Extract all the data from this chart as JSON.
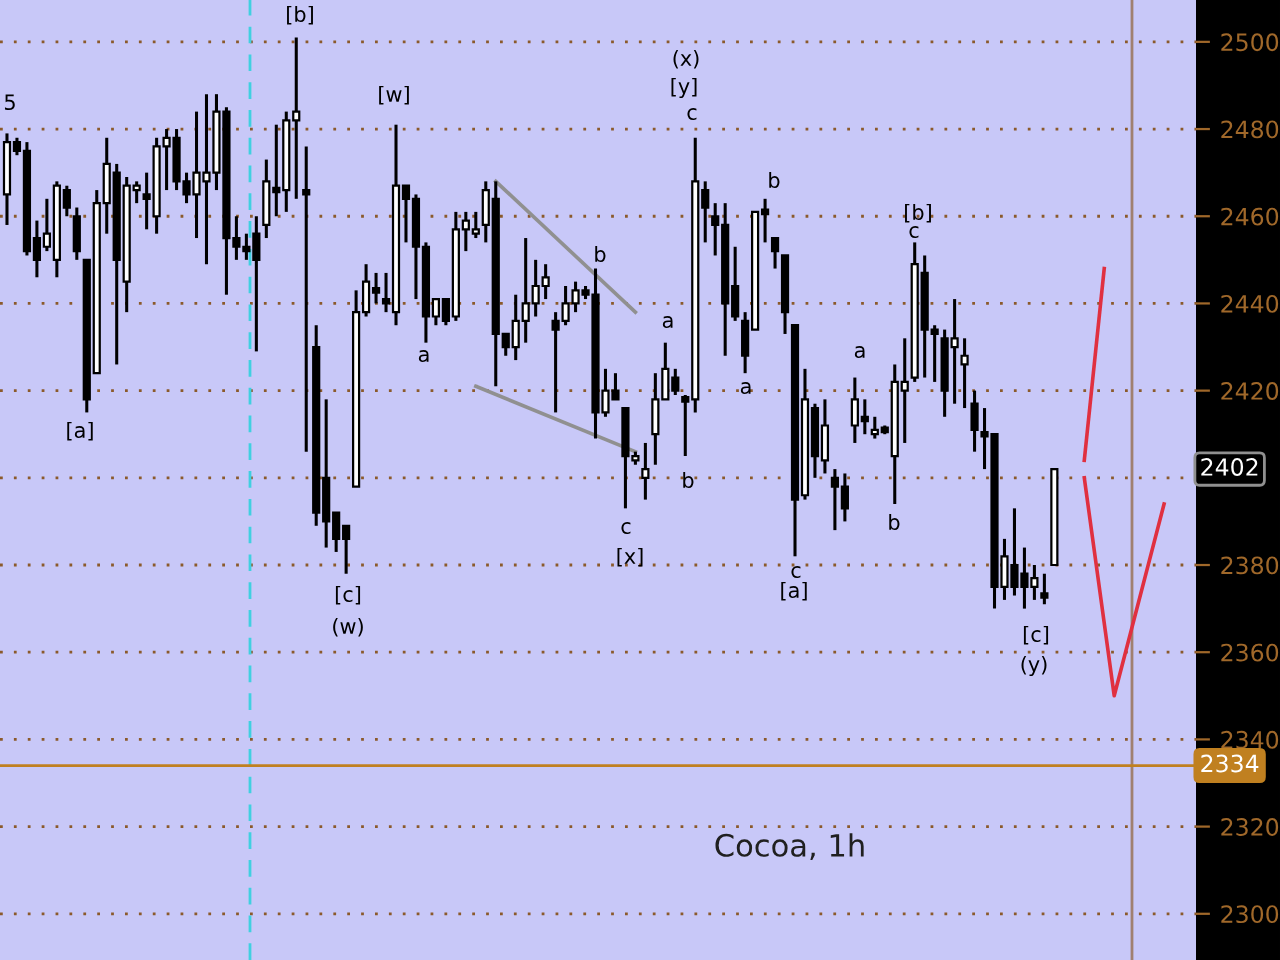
{
  "chart_data": {
    "type": "candlestick",
    "title": "Cocoa, 1h",
    "categories": [
      null,
      null,
      null,
      null,
      null,
      null,
      null,
      null,
      null,
      null,
      null,
      null,
      null,
      null,
      null,
      null,
      null,
      null,
      null,
      null,
      null,
      null,
      null,
      null,
      null,
      null,
      null,
      null,
      null,
      null,
      null,
      null,
      null,
      null,
      null,
      null,
      null,
      null,
      null,
      null,
      null,
      null,
      null,
      null,
      null,
      null,
      null,
      null,
      null,
      null,
      null,
      null,
      null,
      null,
      null,
      null,
      null,
      null,
      null,
      null,
      null,
      null,
      null,
      null,
      null,
      null,
      null,
      null,
      null,
      null,
      null,
      null,
      null,
      null,
      null,
      null,
      null,
      null,
      null,
      null,
      null,
      null,
      null,
      null,
      null,
      null,
      null,
      null,
      null,
      null,
      null,
      null,
      null,
      null,
      null,
      null,
      null,
      null,
      null,
      null,
      null,
      null,
      null,
      null,
      null,
      null,
      null,
      null,
      null,
      null,
      null,
      null,
      null,
      null,
      null,
      null,
      null,
      null,
      null
    ],
    "ohlc": [
      [
        2465,
        2479,
        2458,
        2477
      ],
      [
        2477,
        2478,
        2474,
        2475
      ],
      [
        2475,
        2477,
        2451,
        2452
      ],
      [
        2455,
        2459,
        2446,
        2450
      ],
      [
        2453,
        2464,
        2452,
        2456
      ],
      [
        2450,
        2468,
        2446,
        2467
      ],
      [
        2466,
        2467,
        2460,
        2462
      ],
      [
        2460,
        2462,
        2450,
        2452
      ],
      [
        2450,
        2450,
        2415,
        2418
      ],
      [
        2424,
        2466,
        2424,
        2463
      ],
      [
        2463,
        2478,
        2456,
        2472
      ],
      [
        2470,
        2472,
        2426,
        2450
      ],
      [
        2445,
        2469,
        2438,
        2467
      ],
      [
        2466,
        2468,
        2463,
        2467
      ],
      [
        2465,
        2470,
        2457,
        2464
      ],
      [
        2460,
        2478,
        2456,
        2476
      ],
      [
        2476,
        2480,
        2466,
        2478
      ],
      [
        2478,
        2480,
        2466,
        2468
      ],
      [
        2468,
        2470,
        2463,
        2465
      ],
      [
        2465,
        2484,
        2455,
        2470
      ],
      [
        2468,
        2488,
        2449,
        2470
      ],
      [
        2470,
        2488,
        2466,
        2484
      ],
      [
        2484,
        2485,
        2442,
        2455
      ],
      [
        2455,
        2460,
        2450,
        2453
      ],
      [
        2453,
        2456,
        2450,
        2452
      ],
      [
        2456,
        2460,
        2429,
        2450
      ],
      [
        2458,
        2473,
        2455,
        2468
      ],
      [
        2466,
        2481,
        2460,
        2466
      ],
      [
        2466,
        2484,
        2461,
        2482
      ],
      [
        2482,
        2501,
        2464,
        2484
      ],
      [
        2466,
        2476,
        2406,
        2465
      ],
      [
        2430,
        2435,
        2389,
        2392
      ],
      [
        2400,
        2418,
        2384,
        2390
      ],
      [
        2392,
        2392,
        2383,
        2386
      ],
      [
        2389,
        2389,
        2378,
        2386
      ],
      [
        2398,
        2443,
        2398,
        2438
      ],
      [
        2438,
        2449,
        2437,
        2445
      ],
      [
        2443,
        2447,
        2440,
        2443
      ],
      [
        2441,
        2447,
        2438,
        2440
      ],
      [
        2438,
        2481,
        2435,
        2467
      ],
      [
        2467,
        2467,
        2454,
        2464
      ],
      [
        2464,
        2465,
        2441,
        2453
      ],
      [
        2453,
        2454,
        2431,
        2437
      ],
      [
        2437,
        2441,
        2435,
        2441
      ],
      [
        2441,
        2441,
        2435,
        2436
      ],
      [
        2437,
        2461,
        2436,
        2457
      ],
      [
        2457,
        2461,
        2452,
        2459
      ],
      [
        2456,
        2461,
        2455,
        2457
      ],
      [
        2458,
        2468,
        2454,
        2466
      ],
      [
        2464,
        2468,
        2421,
        2433
      ],
      [
        2433,
        2433,
        2428,
        2430
      ],
      [
        2430,
        2442,
        2427,
        2436
      ],
      [
        2436,
        2455,
        2431,
        2440
      ],
      [
        2440,
        2450,
        2437,
        2444
      ],
      [
        2444,
        2449,
        2441,
        2446
      ],
      [
        2436,
        2438,
        2415,
        2434
      ],
      [
        2436,
        2444,
        2435,
        2440
      ],
      [
        2440,
        2445,
        2438,
        2443
      ],
      [
        2443,
        2444,
        2441,
        2442
      ],
      [
        2442,
        2448,
        2409,
        2415
      ],
      [
        2415,
        2425,
        2414,
        2420
      ],
      [
        2420,
        2424,
        2418,
        2418
      ],
      [
        2416,
        2416,
        2393,
        2405
      ],
      [
        2404,
        2406,
        2403,
        2405
      ],
      [
        2400,
        2408,
        2395,
        2402
      ],
      [
        2410,
        2424,
        2403,
        2418
      ],
      [
        2418,
        2431,
        2418,
        2425
      ],
      [
        2423,
        2425,
        2419,
        2420
      ],
      [
        2418,
        2419,
        2405,
        2418
      ],
      [
        2418,
        2478,
        2415,
        2468
      ],
      [
        2466,
        2468,
        2454,
        2462
      ],
      [
        2460,
        2463,
        2451,
        2458
      ],
      [
        2458,
        2463,
        2428,
        2440
      ],
      [
        2444,
        2453,
        2436,
        2437
      ],
      [
        2436,
        2438,
        2424,
        2428
      ],
      [
        2434,
        2461,
        2434,
        2461
      ],
      [
        2461,
        2464,
        2454,
        2461
      ],
      [
        2455,
        2455,
        2448,
        2452
      ],
      [
        2451,
        2451,
        2433,
        2438
      ],
      [
        2435,
        2435,
        2382,
        2395
      ],
      [
        2396,
        2425,
        2395,
        2418
      ],
      [
        2416,
        2417,
        2400,
        2405
      ],
      [
        2404,
        2418,
        2401,
        2412
      ],
      [
        2400,
        2402,
        2388,
        2398
      ],
      [
        2398,
        2401,
        2390,
        2393
      ],
      [
        2412,
        2423,
        2408,
        2418
      ],
      [
        2414,
        2418,
        2410,
        2413
      ],
      [
        2410,
        2414,
        2409,
        2411
      ],
      [
        2411,
        2412,
        2410,
        2411
      ],
      [
        2405,
        2426,
        2394,
        2422
      ],
      [
        2420,
        2432,
        2408,
        2422
      ],
      [
        2423,
        2454,
        2422,
        2449
      ],
      [
        2447,
        2451,
        2423,
        2434
      ],
      [
        2434,
        2435,
        2422,
        2433
      ],
      [
        2432,
        2434,
        2414,
        2420
      ],
      [
        2430,
        2441,
        2417,
        2432
      ],
      [
        2426,
        2432,
        2416,
        2428
      ],
      [
        2417,
        2420,
        2406,
        2411
      ],
      [
        2410,
        2416,
        2402,
        2410
      ],
      [
        2410,
        2410,
        2370,
        2375
      ],
      [
        2375,
        2386,
        2372,
        2382
      ],
      [
        2380,
        2393,
        2373,
        2375
      ],
      [
        2378,
        2384,
        2370,
        2375
      ],
      [
        2375,
        2380,
        2372,
        2377
      ],
      [
        2373,
        2378,
        2371,
        2373
      ],
      [
        2380,
        2402,
        2380,
        2402
      ],
      null,
      null,
      null,
      null,
      null,
      null,
      null,
      null,
      null,
      null,
      null,
      null,
      null
    ],
    "color": "#000000",
    "series": [
      {
        "type": "line",
        "color": "#909090",
        "values": [
          null,
          null,
          null,
          null,
          null,
          null,
          null,
          null,
          null,
          null,
          null,
          null,
          null,
          null,
          null,
          null,
          null,
          null,
          null,
          null,
          null,
          null,
          null,
          null,
          null,
          null,
          null,
          null,
          null,
          null,
          null,
          null,
          null,
          null,
          null,
          null,
          null,
          null,
          null,
          null,
          null,
          null,
          null,
          null,
          null,
          null,
          null,
          null,
          null,
          2468,
          null,
          null,
          null,
          null,
          null,
          null,
          null,
          null,
          null,
          null,
          null,
          null,
          null,
          2438,
          null,
          null,
          null,
          null,
          null,
          null,
          null,
          null,
          null,
          null,
          null,
          null,
          null,
          null,
          null,
          null,
          null,
          null,
          null,
          null,
          null,
          null,
          null,
          null,
          null,
          null,
          null,
          null,
          null,
          null,
          null,
          null,
          null,
          null,
          null,
          null,
          null,
          null,
          null,
          null,
          null,
          null,
          null,
          null,
          null,
          null,
          null,
          null,
          null,
          null,
          null,
          null,
          null,
          null,
          null
        ]
      },
      {
        "type": "line",
        "color": "#909090",
        "values": [
          null,
          null,
          null,
          null,
          null,
          null,
          null,
          null,
          null,
          null,
          null,
          null,
          null,
          null,
          null,
          null,
          null,
          null,
          null,
          null,
          null,
          null,
          null,
          null,
          null,
          null,
          null,
          null,
          null,
          null,
          null,
          null,
          null,
          null,
          null,
          null,
          null,
          null,
          null,
          null,
          null,
          null,
          null,
          null,
          null,
          null,
          null,
          2421,
          null,
          null,
          null,
          null,
          null,
          null,
          null,
          null,
          null,
          null,
          null,
          null,
          null,
          null,
          null,
          2406,
          null,
          null,
          null,
          null,
          null,
          null,
          null,
          null,
          null,
          null,
          null,
          null,
          null,
          null,
          null,
          null,
          null,
          null,
          null,
          null,
          null,
          null,
          null,
          null,
          null,
          null,
          null,
          null,
          null,
          null,
          null,
          null,
          null,
          null,
          null,
          null,
          null,
          null,
          null,
          null,
          null,
          null,
          null,
          null,
          null,
          null,
          null,
          null,
          null,
          null,
          null,
          null,
          null,
          null,
          null
        ]
      },
      {
        "type": "line",
        "color": "#e03040",
        "values": [
          null,
          null,
          null,
          null,
          null,
          null,
          null,
          null,
          null,
          null,
          null,
          null,
          null,
          null,
          null,
          null,
          null,
          null,
          null,
          null,
          null,
          null,
          null,
          null,
          null,
          null,
          null,
          null,
          null,
          null,
          null,
          null,
          null,
          null,
          null,
          null,
          null,
          null,
          null,
          null,
          null,
          null,
          null,
          null,
          null,
          null,
          null,
          null,
          null,
          null,
          null,
          null,
          null,
          null,
          null,
          null,
          null,
          null,
          null,
          null,
          null,
          null,
          null,
          null,
          null,
          null,
          null,
          null,
          null,
          null,
          null,
          null,
          null,
          null,
          null,
          null,
          null,
          null,
          null,
          null,
          null,
          null,
          null,
          null,
          null,
          null,
          null,
          null,
          null,
          null,
          null,
          null,
          null,
          null,
          null,
          null,
          null,
          null,
          null,
          null,
          null,
          null,
          null,
          null,
          null,
          null,
          null,
          null,
          2404,
          null,
          2448,
          null,
          null,
          null,
          null,
          null,
          null,
          null,
          null
        ]
      },
      {
        "type": "line",
        "color": "#e03040",
        "values": [
          null,
          null,
          null,
          null,
          null,
          null,
          null,
          null,
          null,
          null,
          null,
          null,
          null,
          null,
          null,
          null,
          null,
          null,
          null,
          null,
          null,
          null,
          null,
          null,
          null,
          null,
          null,
          null,
          null,
          null,
          null,
          null,
          null,
          null,
          null,
          null,
          null,
          null,
          null,
          null,
          null,
          null,
          null,
          null,
          null,
          null,
          null,
          null,
          null,
          null,
          null,
          null,
          null,
          null,
          null,
          null,
          null,
          null,
          null,
          null,
          null,
          null,
          null,
          null,
          null,
          null,
          null,
          null,
          null,
          null,
          null,
          null,
          null,
          null,
          null,
          null,
          null,
          null,
          null,
          null,
          null,
          null,
          null,
          null,
          null,
          null,
          null,
          null,
          null,
          null,
          null,
          null,
          null,
          null,
          null,
          null,
          null,
          null,
          null,
          null,
          null,
          null,
          null,
          null,
          null,
          null,
          null,
          null,
          2400,
          null,
          null,
          2350,
          null,
          null,
          null,
          null,
          2394,
          null,
          null
        ]
      }
    ],
    "ylim": [
      2289.4,
      2509.6
    ],
    "yticks": [
      2300,
      2320,
      2340,
      2360,
      2380,
      {
        "value": 2400,
        "label": null
      },
      2420,
      2440,
      2460,
      2480,
      2500
    ],
    "tick_labels": "y",
    "grid": "y",
    "legend": false,
    "ref_lines": [
      {
        "axis": "y",
        "value": 2334,
        "label": "2334",
        "color": "#c08020"
      }
    ],
    "annotations": [
      {
        "text": "2402",
        "y": 2402
      },
      "5",
      "[b]",
      "[a]",
      "[c]",
      "(w)",
      "[w]",
      "a",
      "b",
      "c",
      "[x]",
      "(x)",
      "[y]",
      "c",
      "a",
      "b",
      "a",
      "b",
      "c",
      "[a]",
      "a",
      "b",
      "[b]",
      "c",
      "[c]",
      "(y)"
    ]
  }
}
